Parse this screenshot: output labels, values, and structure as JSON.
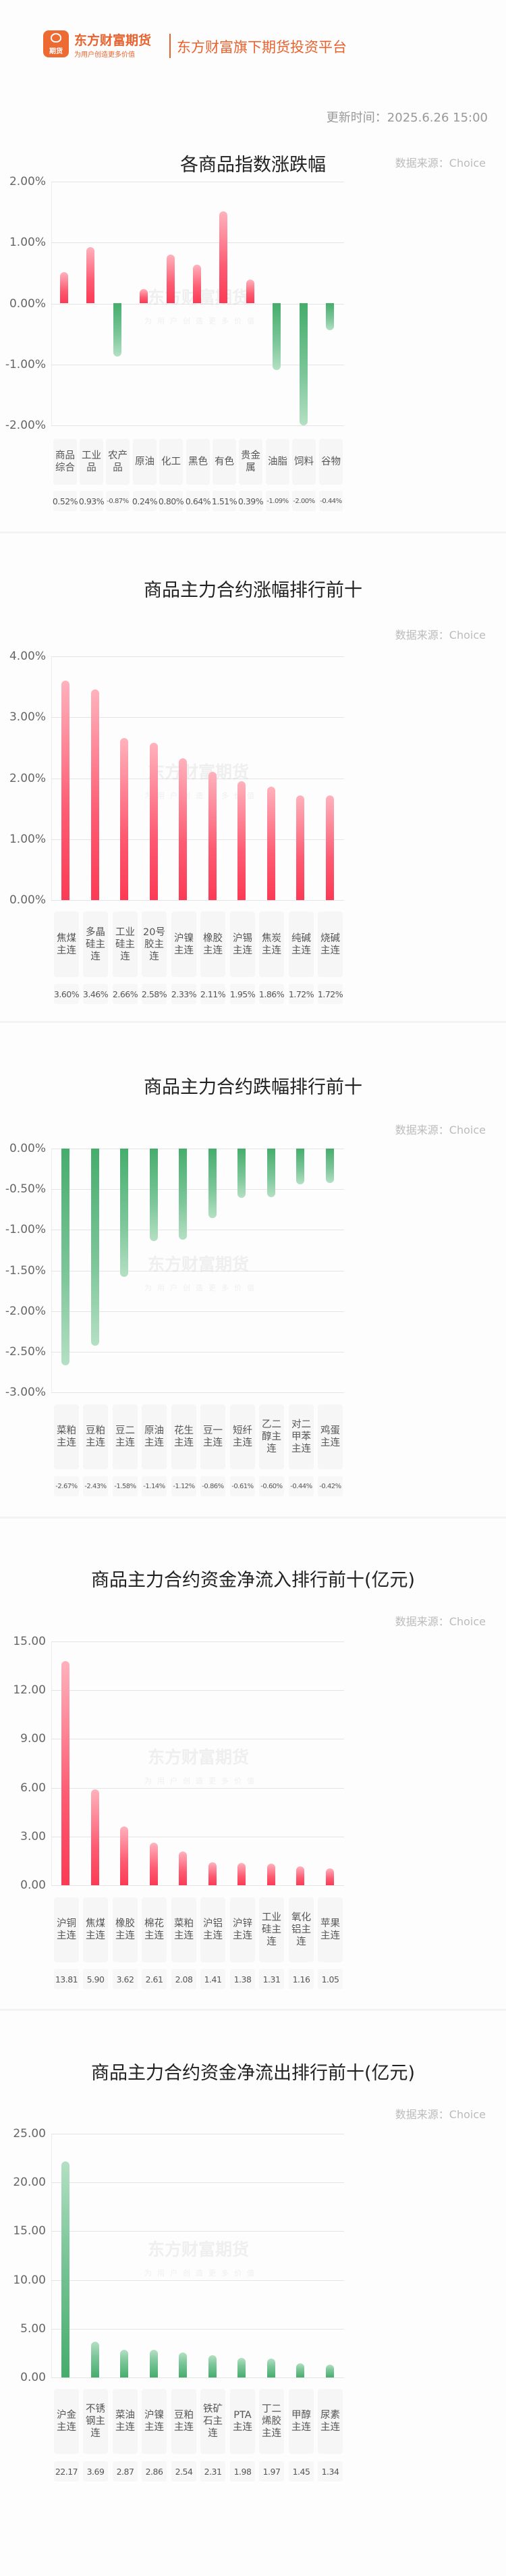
{
  "header": {
    "logo_glyph": "期货",
    "brand_name": "东方财富期货",
    "brand_slogan": "为用户创造更多价值",
    "platform_text": "东方财富旗下期货投资平台",
    "update_time": "更新时间：2025.6.26 15:00"
  },
  "watermark": {
    "line1": "东方财富期货",
    "line2": "为用户创造更多价值"
  },
  "colors": {
    "brand": "#e8622e",
    "up": "#fc3a55",
    "down": "#45ad6c"
  },
  "sections": [
    {
      "title": "各商品指数涨跌幅",
      "source": "数据来源：Choice"
    },
    {
      "title": "商品主力合约涨幅排行前十",
      "source": "数据来源：Choice"
    },
    {
      "title": "商品主力合约跌幅排行前十",
      "source": "数据来源：Choice"
    },
    {
      "title": "商品主力合约资金净流入排行前十(亿元)",
      "source": "数据来源：Choice"
    },
    {
      "title": "商品主力合约资金净流出排行前十(亿元)",
      "source": "数据来源：Choice"
    }
  ],
  "chart_data": [
    {
      "type": "bar",
      "title": "各商品指数涨跌幅",
      "categories": [
        "商品综合",
        "工业品",
        "农产品",
        "原油",
        "化工",
        "黑色",
        "有色",
        "贵金属",
        "油脂",
        "饲料",
        "谷物"
      ],
      "category_labels": [
        "商品\n综合",
        "工业\n品",
        "农产\n品",
        "原油",
        "化工",
        "黑色",
        "有色",
        "贵金\n属",
        "油脂",
        "饲料",
        "谷物"
      ],
      "values": [
        0.52,
        0.93,
        -0.87,
        0.24,
        0.8,
        0.64,
        1.51,
        0.39,
        -1.09,
        -2.0,
        -0.44
      ],
      "value_labels": [
        "0.52%",
        "0.93%",
        "-0.87%",
        "0.24%",
        "0.80%",
        "0.64%",
        "1.51%",
        "0.39%",
        "-1.09%",
        "-2.00%",
        "-0.44%"
      ],
      "yticks": [
        "2.00%",
        "1.00%",
        "0.00%",
        "-1.00%",
        "-2.00%"
      ],
      "ylim": [
        -2,
        2
      ],
      "ylabel": "",
      "xlabel": "",
      "grid": true,
      "legend": "none"
    },
    {
      "type": "bar",
      "title": "商品主力合约涨幅排行前十",
      "categories": [
        "焦煤主连",
        "多晶硅主连",
        "工业硅主连",
        "20号胶主连",
        "沪镍主连",
        "橡胶主连",
        "沪锡主连",
        "焦炭主连",
        "纯碱主连",
        "烧碱主连"
      ],
      "category_labels": [
        "焦煤\n主连",
        "多晶\n硅主\n连",
        "工业\n硅主\n连",
        "20号\n胶主\n连",
        "沪镍\n主连",
        "橡胶\n主连",
        "沪锡\n主连",
        "焦炭\n主连",
        "纯碱\n主连",
        "烧碱\n主连"
      ],
      "values": [
        3.6,
        3.46,
        2.66,
        2.58,
        2.33,
        2.11,
        1.95,
        1.86,
        1.72,
        1.72
      ],
      "value_labels": [
        "3.60%",
        "3.46%",
        "2.66%",
        "2.58%",
        "2.33%",
        "2.11%",
        "1.95%",
        "1.86%",
        "1.72%",
        "1.72%"
      ],
      "yticks": [
        "4.00%",
        "3.00%",
        "2.00%",
        "1.00%",
        "0.00%"
      ],
      "ylim": [
        0,
        4
      ],
      "ylabel": "",
      "xlabel": "",
      "grid": true,
      "legend": "none"
    },
    {
      "type": "bar",
      "title": "商品主力合约跌幅排行前十",
      "categories": [
        "菜粕主连",
        "豆粕主连",
        "豆二主连",
        "原油主连",
        "花生主连",
        "豆一主连",
        "短纤主连",
        "乙二醇主连",
        "对二甲苯主连",
        "鸡蛋主连"
      ],
      "category_labels": [
        "菜粕\n主连",
        "豆粕\n主连",
        "豆二\n主连",
        "原油\n主连",
        "花生\n主连",
        "豆一\n主连",
        "短纤\n主连",
        "乙二\n醇主\n连",
        "对二\n甲苯\n主连",
        "鸡蛋\n主连"
      ],
      "values": [
        -2.67,
        -2.43,
        -1.58,
        -1.14,
        -1.12,
        -0.86,
        -0.61,
        -0.6,
        -0.44,
        -0.42
      ],
      "value_labels": [
        "-2.67%",
        "-2.43%",
        "-1.58%",
        "-1.14%",
        "-1.12%",
        "-0.86%",
        "-0.61%",
        "-0.60%",
        "-0.44%",
        "-0.42%"
      ],
      "yticks": [
        "0.00%",
        "-0.50%",
        "-1.00%",
        "-1.50%",
        "-2.00%",
        "-2.50%",
        "-3.00%"
      ],
      "ylim": [
        -3,
        0
      ],
      "ylabel": "",
      "xlabel": "",
      "grid": true,
      "legend": "none"
    },
    {
      "type": "bar",
      "title": "商品主力合约资金净流入排行前十(亿元)",
      "categories": [
        "沪铜主连",
        "焦煤主连",
        "橡胶主连",
        "棉花主连",
        "菜粕主连",
        "沪铝主连",
        "沪锌主连",
        "工业硅主连",
        "氧化铝主连",
        "苹果主连"
      ],
      "category_labels": [
        "沪铜\n主连",
        "焦煤\n主连",
        "橡胶\n主连",
        "棉花\n主连",
        "菜粕\n主连",
        "沪铝\n主连",
        "沪锌\n主连",
        "工业\n硅主\n连",
        "氧化\n铝主\n连",
        "苹果\n主连"
      ],
      "values": [
        13.81,
        5.9,
        3.62,
        2.61,
        2.08,
        1.41,
        1.38,
        1.31,
        1.16,
        1.05
      ],
      "value_labels": [
        "13.81",
        "5.90",
        "3.62",
        "2.61",
        "2.08",
        "1.41",
        "1.38",
        "1.31",
        "1.16",
        "1.05"
      ],
      "yticks": [
        "15.00",
        "12.00",
        "9.00",
        "6.00",
        "3.00",
        "0.00"
      ],
      "ylim": [
        0,
        15
      ],
      "ylabel": "",
      "xlabel": "",
      "grid": true,
      "legend": "none"
    },
    {
      "type": "bar",
      "title": "商品主力合约资金净流出排行前十(亿元)",
      "categories": [
        "沪金主连",
        "不锈钢主连",
        "菜油主连",
        "沪镍主连",
        "豆粕主连",
        "铁矿石主连",
        "PTA主连",
        "丁二烯胶主连",
        "甲醇主连",
        "尿素主连"
      ],
      "category_labels": [
        "沪金\n主连",
        "不锈\n钢主\n连",
        "菜油\n主连",
        "沪镍\n主连",
        "豆粕\n主连",
        "铁矿\n石主\n连",
        "PTA\n主连",
        "丁二\n烯胶\n主连",
        "甲醇\n主连",
        "尿素\n主连"
      ],
      "values": [
        22.17,
        3.69,
        2.87,
        2.86,
        2.54,
        2.31,
        1.98,
        1.97,
        1.45,
        1.34
      ],
      "value_labels": [
        "22.17",
        "3.69",
        "2.87",
        "2.86",
        "2.54",
        "2.31",
        "1.98",
        "1.97",
        "1.45",
        "1.34"
      ],
      "yticks": [
        "25.00",
        "20.00",
        "15.00",
        "10.00",
        "5.00",
        "0.00"
      ],
      "ylim": [
        0,
        25
      ],
      "ylabel": "",
      "xlabel": "",
      "grid": true,
      "legend": "none"
    }
  ]
}
